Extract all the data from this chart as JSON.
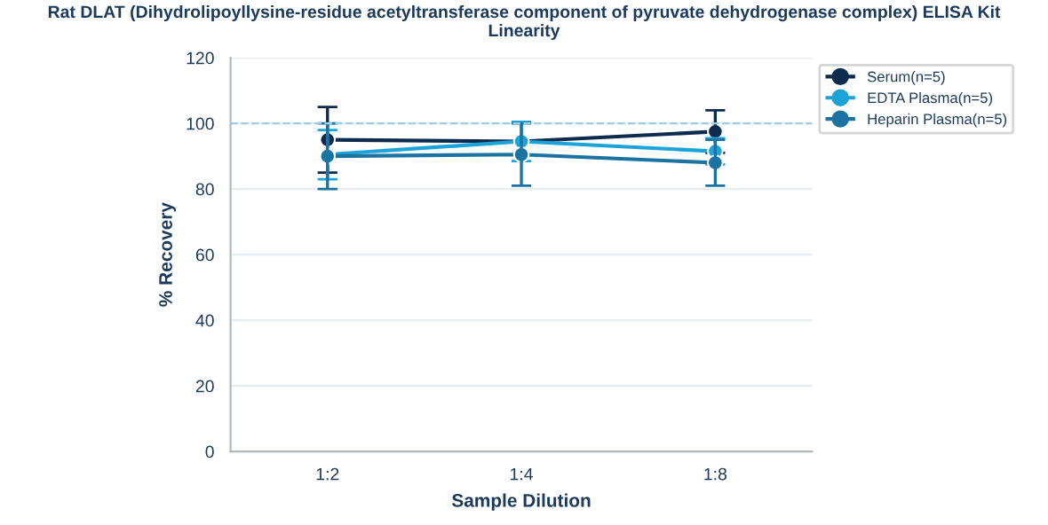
{
  "chart_data": {
    "type": "line",
    "title": "Rat DLAT (Dihydrolipoyllysine-residue acetyltransferase component of pyruvate dehydrogenase complex) ELISA Kit\nLinearity",
    "xlabel": "Sample Dilution",
    "ylabel": "% Recovery",
    "categories": [
      "1:2",
      "1:4",
      "1:8"
    ],
    "series": [
      {
        "name": "Serum(n=5)",
        "color": "#0d2b4e",
        "values": [
          95,
          94.5,
          97.5
        ],
        "errors": [
          10,
          null,
          6.5
        ]
      },
      {
        "name": "EDTA Plasma(n=5)",
        "color": "#1ca3d8",
        "values": [
          90.5,
          94.5,
          91.5
        ],
        "errors": [
          7.5,
          6,
          4
        ]
      },
      {
        "name": "Heparin Plasma(n=5)",
        "color": "#1a73a0",
        "values": [
          90,
          90.5,
          88
        ],
        "errors": [
          10,
          9.5,
          7
        ]
      }
    ],
    "ylim": [
      0,
      120
    ],
    "yticks": [
      0,
      20,
      40,
      60,
      80,
      100,
      120
    ],
    "ref_lines": [
      {
        "axis": "y",
        "value": 100,
        "color": "#9ccfe6",
        "line_style": "dashed"
      }
    ],
    "grid": "y",
    "legend": "top right",
    "marker": "circle"
  }
}
